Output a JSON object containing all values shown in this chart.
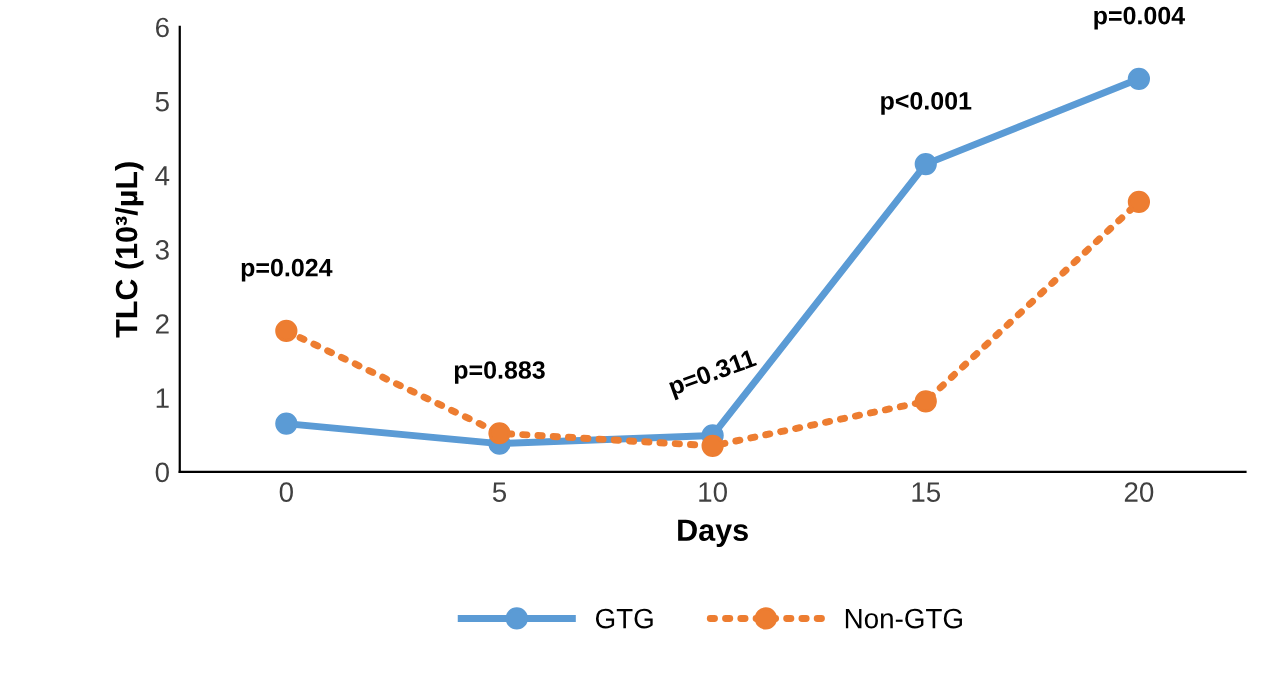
{
  "chart_data": {
    "type": "line",
    "xlabel": "Days",
    "ylabel": "TLC (10³/µL)",
    "categories": [
      "0",
      "5",
      "10",
      "15",
      "20"
    ],
    "series": [
      {
        "name": "GTG",
        "color": "#5b9bd5",
        "line_style": "solid",
        "values": [
          0.65,
          0.38,
          0.49,
          4.15,
          5.3
        ]
      },
      {
        "name": "Non-GTG",
        "color": "#ed7d31",
        "line_style": "dotted",
        "values": [
          1.9,
          0.52,
          0.35,
          0.95,
          3.64
        ]
      }
    ],
    "ylim": [
      0,
      6
    ],
    "yticks": [
      0,
      1,
      2,
      3,
      4,
      5,
      6
    ],
    "grid": false,
    "legend": "bottom",
    "marker": "circle",
    "annotations": [
      "p=0.024",
      "p=0.883",
      "p=0.311",
      "p<0.001",
      "p=0.004"
    ]
  }
}
